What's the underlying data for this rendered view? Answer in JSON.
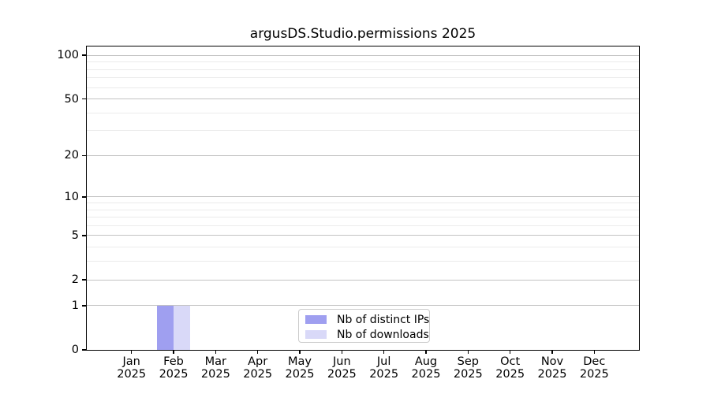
{
  "chart_data": {
    "type": "bar",
    "title": "argusDS.Studio.permissions 2025",
    "categories": [
      "Jan 2025",
      "Feb 2025",
      "Mar 2025",
      "Apr 2025",
      "May 2025",
      "Jun 2025",
      "Jul 2025",
      "Aug 2025",
      "Sep 2025",
      "Oct 2025",
      "Nov 2025",
      "Dec 2025"
    ],
    "series": [
      {
        "name": "Nb of distinct IPs",
        "color": "#9f9ff0",
        "values": [
          0,
          1,
          0,
          0,
          0,
          0,
          0,
          0,
          0,
          0,
          0,
          0
        ]
      },
      {
        "name": "Nb of downloads",
        "color": "#d9d9f8",
        "values": [
          0,
          1,
          0,
          0,
          0,
          0,
          0,
          0,
          0,
          0,
          0,
          0
        ]
      }
    ],
    "xlabel": "",
    "ylabel": "",
    "yscale": "log1p",
    "ylim": [
      0,
      115
    ],
    "y_ticks": [
      0,
      1,
      2,
      5,
      10,
      20,
      50,
      100
    ],
    "y_minor_ticks": [
      3,
      4,
      6,
      7,
      8,
      9,
      30,
      40,
      60,
      70,
      80,
      90
    ],
    "grid": true,
    "legend_position": "lower center"
  },
  "colors": {
    "major_grid": "#c3c3c3",
    "minor_grid": "#ebebeb",
    "spine": "#000000",
    "legend_border": "#cccccc",
    "background": "#ffffff"
  }
}
